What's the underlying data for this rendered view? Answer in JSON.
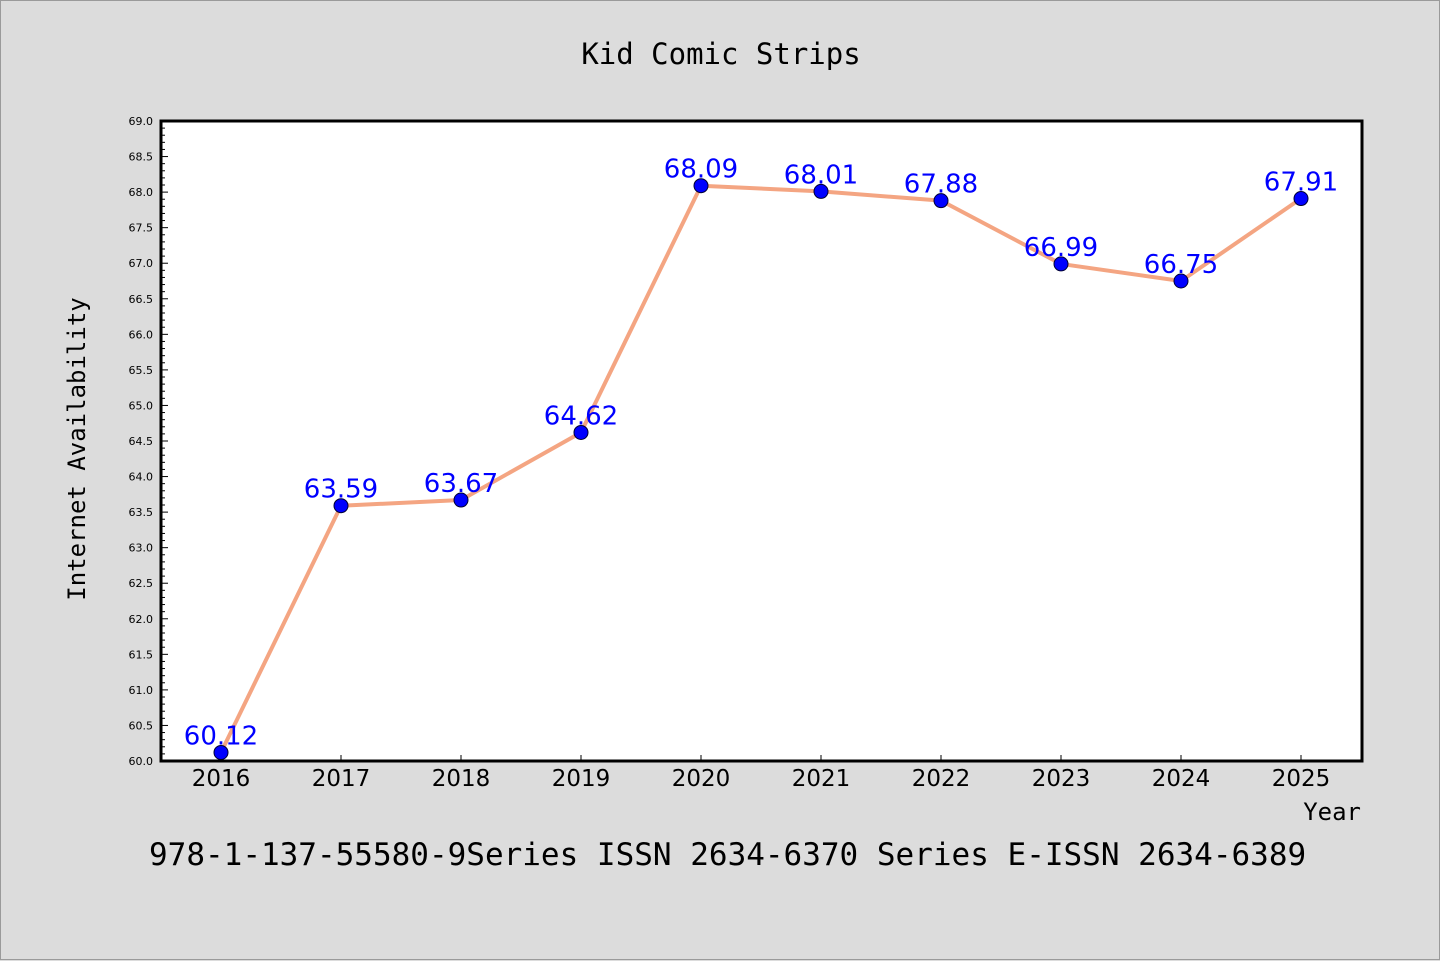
{
  "chart_data": {
    "type": "line",
    "title": "Kid Comic Strips",
    "xlabel": "Year",
    "ylabel": "Internet Availability",
    "x": [
      "2016",
      "2017",
      "2018",
      "2019",
      "2020",
      "2021",
      "2022",
      "2023",
      "2024",
      "2025"
    ],
    "series": [
      {
        "values": [
          60.12,
          63.59,
          63.67,
          64.62,
          68.09,
          68.01,
          67.88,
          66.99,
          66.75,
          67.91
        ],
        "labels": [
          "60.12",
          "63.59",
          "63.67",
          "64.62",
          "68.09",
          "68.01",
          "67.88",
          "66.99",
          "66.75",
          "67.91"
        ],
        "line_color": "#f4a582",
        "marker_color": "#0000ff",
        "label_color": "#0000ff"
      }
    ],
    "ylim": [
      60.0,
      69.0
    ],
    "yticks": [
      "60.0",
      "60.5",
      "61.0",
      "61.5",
      "62.0",
      "62.5",
      "63.0",
      "63.5",
      "64.0",
      "64.5",
      "65.0",
      "65.5",
      "66.0",
      "66.5",
      "67.0",
      "67.5",
      "68.0",
      "68.5",
      "69.0"
    ],
    "grid": false,
    "legend": "none",
    "footer": "978-1-137-55580-9Series ISSN 2634-6370 Series E-ISSN 2634-6389",
    "background_color": "#dcdcdc",
    "plot_background_color": "#ffffff"
  }
}
